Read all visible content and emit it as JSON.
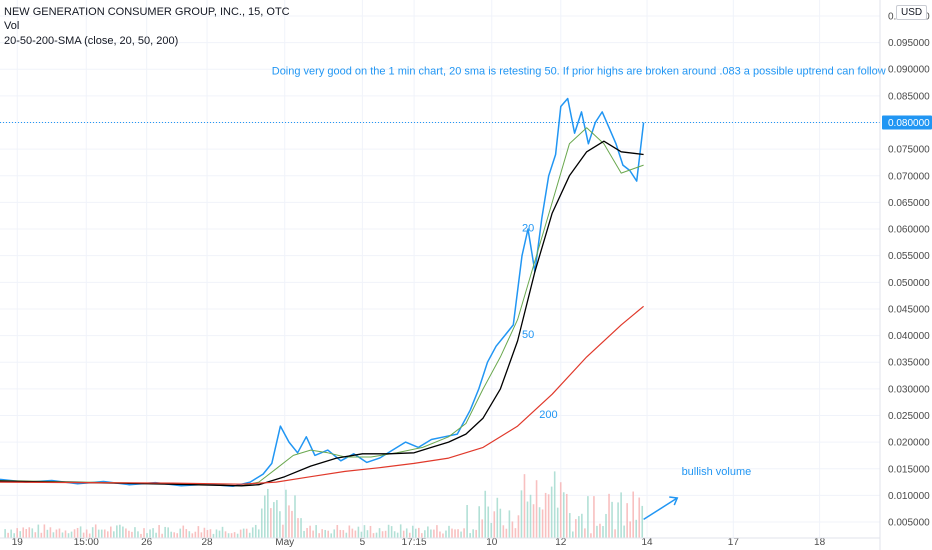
{
  "header": {
    "symbol_line": "NEW GENERATION CONSUMER GROUP, INC., 15, OTC",
    "vol_label": "Vol",
    "indicator_label": "20-50-200-SMA (close, 20, 50, 200)",
    "currency_button": "USD"
  },
  "colors": {
    "price": "#2196f3",
    "sma20": "#6aa84f",
    "sma50": "#000000",
    "sma200": "#e0392b",
    "price_tag_bg": "#2196f3",
    "vol_up": "#9fd8cc",
    "vol_down": "#f6b0b0",
    "annotation": "#2196f3"
  },
  "chart_data": {
    "type": "line",
    "title": "NEW GENERATION CONSUMER GROUP, INC., 15, OTC",
    "y_axis": {
      "ticks": [
        "0.005000",
        "0.010000",
        "0.015000",
        "0.020000",
        "0.025000",
        "0.030000",
        "0.035000",
        "0.040000",
        "0.045000",
        "0.050000",
        "0.055000",
        "0.060000",
        "0.065000",
        "0.070000",
        "0.075000",
        "0.080000",
        "0.085000",
        "0.090000",
        "0.095000",
        "0.100000"
      ],
      "ylim": [
        0.002,
        0.103
      ]
    },
    "x_axis": {
      "ticks": [
        {
          "label": "19",
          "t": 0.2
        },
        {
          "label": "15:00",
          "t": 1.0
        },
        {
          "label": "26",
          "t": 1.7
        },
        {
          "label": "28",
          "t": 2.4
        },
        {
          "label": "May",
          "t": 3.3
        },
        {
          "label": "5",
          "t": 4.2
        },
        {
          "label": "17:15",
          "t": 4.8
        },
        {
          "label": "10",
          "t": 5.7
        },
        {
          "label": "12",
          "t": 6.5
        },
        {
          "label": "14",
          "t": 7.5
        },
        {
          "label": "17",
          "t": 8.5
        },
        {
          "label": "18",
          "t": 9.5
        }
      ],
      "xlim": [
        0,
        10.2
      ]
    },
    "last_price": {
      "label": "0.080000",
      "value": 0.08
    },
    "series": [
      {
        "key": "price",
        "x": [
          0.0,
          0.3,
          0.6,
          0.9,
          1.2,
          1.5,
          1.8,
          2.1,
          2.4,
          2.7,
          2.9,
          3.05,
          3.15,
          3.25,
          3.35,
          3.45,
          3.55,
          3.65,
          3.8,
          3.95,
          4.1,
          4.25,
          4.4,
          4.55,
          4.7,
          4.85,
          5.0,
          5.15,
          5.3,
          5.45,
          5.55,
          5.65,
          5.75,
          5.85,
          5.95,
          6.05,
          6.12,
          6.2,
          6.28,
          6.36,
          6.44,
          6.5,
          6.58,
          6.66,
          6.74,
          6.82,
          6.9,
          6.98,
          7.06,
          7.14,
          7.22,
          7.3,
          7.38,
          7.46
        ],
        "y": [
          0.013,
          0.0125,
          0.0128,
          0.0122,
          0.0126,
          0.012,
          0.0124,
          0.0118,
          0.0121,
          0.0117,
          0.0125,
          0.014,
          0.016,
          0.023,
          0.02,
          0.018,
          0.021,
          0.0175,
          0.0185,
          0.0165,
          0.0178,
          0.0162,
          0.017,
          0.0185,
          0.02,
          0.019,
          0.0205,
          0.021,
          0.0215,
          0.026,
          0.03,
          0.035,
          0.038,
          0.04,
          0.042,
          0.055,
          0.06,
          0.052,
          0.062,
          0.07,
          0.074,
          0.083,
          0.0845,
          0.078,
          0.082,
          0.076,
          0.08,
          0.082,
          0.079,
          0.076,
          0.072,
          0.071,
          0.069,
          0.08
        ]
      },
      {
        "key": "sma20",
        "label": "20",
        "x": [
          0.0,
          1.0,
          2.0,
          2.8,
          3.0,
          3.2,
          3.4,
          3.6,
          3.8,
          4.0,
          4.3,
          4.6,
          4.9,
          5.2,
          5.4,
          5.6,
          5.8,
          6.0,
          6.2,
          6.4,
          6.6,
          6.8,
          7.0,
          7.2,
          7.46
        ],
        "y": [
          0.0128,
          0.0125,
          0.0122,
          0.0118,
          0.0125,
          0.015,
          0.0175,
          0.0185,
          0.018,
          0.0172,
          0.0172,
          0.018,
          0.019,
          0.021,
          0.0235,
          0.03,
          0.036,
          0.043,
          0.054,
          0.065,
          0.076,
          0.079,
          0.076,
          0.0705,
          0.072
        ]
      },
      {
        "key": "sma50",
        "label": "50",
        "x": [
          0.0,
          1.0,
          2.0,
          2.8,
          3.0,
          3.3,
          3.6,
          3.9,
          4.2,
          4.5,
          4.8,
          5.0,
          5.2,
          5.4,
          5.6,
          5.8,
          6.0,
          6.2,
          6.4,
          6.6,
          6.8,
          7.0,
          7.2,
          7.46
        ],
        "y": [
          0.0127,
          0.0124,
          0.0121,
          0.0118,
          0.012,
          0.0135,
          0.0155,
          0.017,
          0.0178,
          0.0178,
          0.018,
          0.019,
          0.02,
          0.0215,
          0.0245,
          0.03,
          0.039,
          0.052,
          0.063,
          0.07,
          0.0745,
          0.0765,
          0.0745,
          0.074
        ]
      },
      {
        "key": "sma200",
        "label": "200",
        "x": [
          0.0,
          1.0,
          2.0,
          2.8,
          3.2,
          3.6,
          4.0,
          4.4,
          4.8,
          5.2,
          5.6,
          6.0,
          6.4,
          6.8,
          7.2,
          7.46
        ],
        "y": [
          0.0125,
          0.0124,
          0.0123,
          0.0121,
          0.0125,
          0.0135,
          0.0145,
          0.0152,
          0.016,
          0.017,
          0.019,
          0.023,
          0.029,
          0.036,
          0.042,
          0.0455
        ]
      }
    ],
    "ma_labels": [
      {
        "text": "20",
        "x": 6.05,
        "y": 0.0595
      },
      {
        "text": "50",
        "x": 6.05,
        "y": 0.0395
      },
      {
        "text": "200",
        "x": 6.25,
        "y": 0.0245
      }
    ],
    "annotations": [
      {
        "text": "Doing very good on the 1 min chart, 20 sma is retesting 50. If prior highs are broken around .083   a possible uptrend can follow",
        "x": 3.15,
        "y": 0.089
      },
      {
        "text": "bullish volume",
        "x": 7.9,
        "y": 0.0138
      }
    ],
    "volume_note": "bullish volume arrow"
  }
}
